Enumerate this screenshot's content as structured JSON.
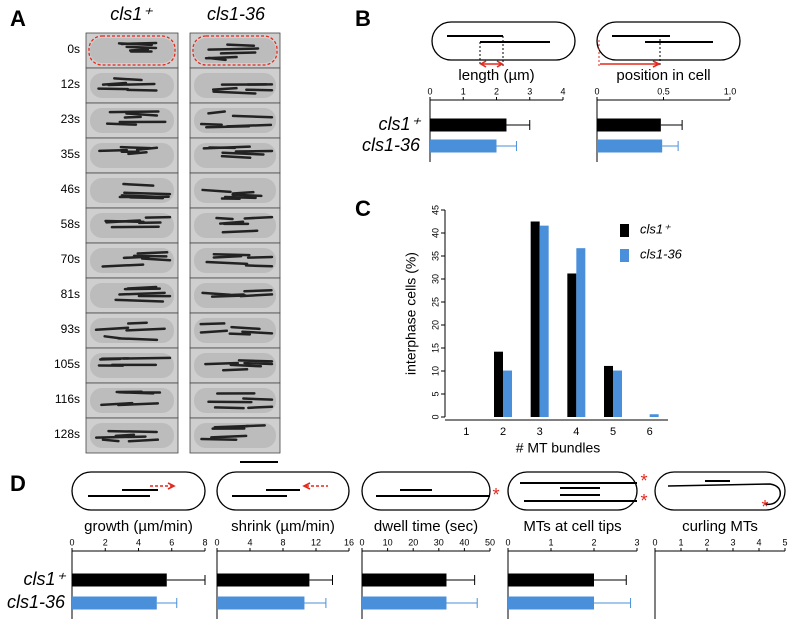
{
  "panel_labels": [
    "A",
    "B",
    "C",
    "D"
  ],
  "panel_a": {
    "columns": [
      "cls1⁺",
      "cls1-36"
    ],
    "times": [
      "0s",
      "12s",
      "23s",
      "35s",
      "46s",
      "58s",
      "70s",
      "81s",
      "93s",
      "105s",
      "116s",
      "128s"
    ]
  },
  "chart_data": [
    {
      "type": "barh",
      "title": "length (µm)",
      "categories": [
        "cls1⁺",
        "cls1-36"
      ],
      "values": [
        2.3,
        2.0
      ],
      "errors": [
        0.7,
        0.6
      ],
      "colors": [
        "#000000",
        "#4a8fd9"
      ],
      "xlim": [
        0,
        4
      ],
      "xticks": [
        0,
        1,
        2,
        3,
        4
      ]
    },
    {
      "type": "barh",
      "title": "position in cell",
      "values": [
        0.48,
        0.49
      ],
      "errors": [
        0.16,
        0.12
      ],
      "colors": [
        "#000000",
        "#4a8fd9"
      ],
      "xlim": [
        0,
        1
      ],
      "xticks": [
        0,
        0.5,
        {
          "value": 1,
          "label": "1.0"
        }
      ]
    },
    {
      "type": "bar",
      "x_label": "# MT bundles",
      "y_label": "interphase cells (%)",
      "categories": [
        "1",
        "2",
        "3",
        "4",
        "5",
        "6"
      ],
      "series": [
        {
          "name": "cls1⁺",
          "color": "#000000",
          "values": [
            0,
            14.2,
            42.5,
            31.2,
            11.1,
            0
          ]
        },
        {
          "name": "cls1-36",
          "color": "#4a8fd9",
          "values": [
            0,
            10.1,
            41.6,
            36.7,
            10.1,
            0.6
          ]
        }
      ],
      "ylim": [
        0,
        45
      ],
      "yticks": [
        0,
        5,
        10,
        15,
        20,
        25,
        30,
        35,
        40,
        45
      ]
    },
    {
      "type": "barh",
      "title": "growth (µm/min)",
      "categories": [
        "cls1⁺",
        "cls1-36"
      ],
      "values": [
        5.7,
        5.1
      ],
      "errors": [
        2.3,
        1.2
      ],
      "colors": [
        "#000000",
        "#4a8fd9"
      ],
      "xlim": [
        0,
        8
      ],
      "xticks": [
        0,
        2,
        4,
        6,
        8
      ]
    },
    {
      "type": "barh",
      "title": "shrink (µm/min)",
      "values": [
        11.2,
        10.6
      ],
      "errors": [
        2.8,
        2.6
      ],
      "colors": [
        "#000000",
        "#4a8fd9"
      ],
      "xlim": [
        0,
        16
      ],
      "xticks": [
        0,
        4,
        8,
        12,
        16
      ]
    },
    {
      "type": "barh",
      "title": "dwell time (sec)",
      "values": [
        33,
        33
      ],
      "errors": [
        11,
        12
      ],
      "colors": [
        "#000000",
        "#4a8fd9"
      ],
      "xlim": [
        0,
        50
      ],
      "xticks": [
        0,
        10,
        20,
        30,
        40,
        50
      ]
    },
    {
      "type": "barh",
      "title": "MTs at cell tips",
      "values": [
        2.0,
        2.0
      ],
      "errors": [
        0.75,
        0.85
      ],
      "colors": [
        "#000000",
        "#4a8fd9"
      ],
      "xlim": [
        0,
        3
      ],
      "xticks": [
        0,
        1,
        2,
        3
      ]
    },
    {
      "type": "barh",
      "title": "curling MTs",
      "values": [
        0,
        0
      ],
      "colors": [
        "#000000",
        "#4a8fd9"
      ],
      "xlim": [
        0,
        5
      ],
      "xticks": [
        0,
        1,
        2,
        3,
        4,
        5
      ]
    }
  ]
}
